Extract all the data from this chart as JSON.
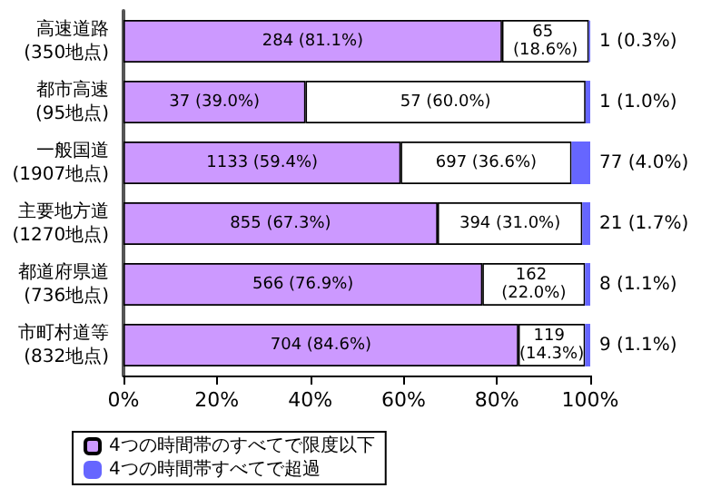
{
  "chart_data": {
    "type": "bar",
    "orientation": "horizontal",
    "stacked": true,
    "categories": [
      "高速道路\n(350地点)",
      "都市高速\n(95地点)",
      "一般国道\n(1907地点)",
      "主要地方道\n(1270地点)",
      "都道府県道\n(736地点)",
      "市町村道等\n(832地点)"
    ],
    "series": [
      {
        "name": "4つの時間帯のすべてで限度以下",
        "color": "#cc99ff",
        "values": [
          81.1,
          39.0,
          59.4,
          67.3,
          76.9,
          84.6
        ],
        "value_labels": [
          "284 (81.1%)",
          "37 (39.0%)",
          "1133 (59.4%)",
          "855 (67.3%)",
          "566 (76.9%)",
          "704 (84.6%)"
        ]
      },
      {
        "color": "#ffffff",
        "values": [
          18.6,
          60.0,
          36.6,
          31.0,
          22.0,
          14.3
        ],
        "value_labels": [
          "65 (18.6%)",
          "57 (60.0%)",
          "697 (36.6%)",
          "394 (31.0%)",
          "162 (22.0%)",
          "119 (14.3%)"
        ]
      },
      {
        "name": "4つの時間帯すべてで超過",
        "color": "#6666ff",
        "values": [
          0.3,
          1.0,
          4.0,
          1.7,
          1.1,
          1.1
        ],
        "value_labels": [
          "1 (0.3%)",
          "1 (1.0%)",
          "77 (4.0%)",
          "21 (1.7%)",
          "8 (1.1%)",
          "9 (1.1%)"
        ]
      }
    ],
    "xlim": [
      0,
      100
    ],
    "xticks": [
      {
        "value": 0,
        "label": "0%"
      },
      {
        "value": 20,
        "label": "20%"
      },
      {
        "value": 40,
        "label": "40%"
      },
      {
        "value": 60,
        "label": "60%"
      },
      {
        "value": 80,
        "label": "80%"
      },
      {
        "value": 100,
        "label": "100%"
      }
    ],
    "grid": false,
    "legend": "bottom"
  }
}
